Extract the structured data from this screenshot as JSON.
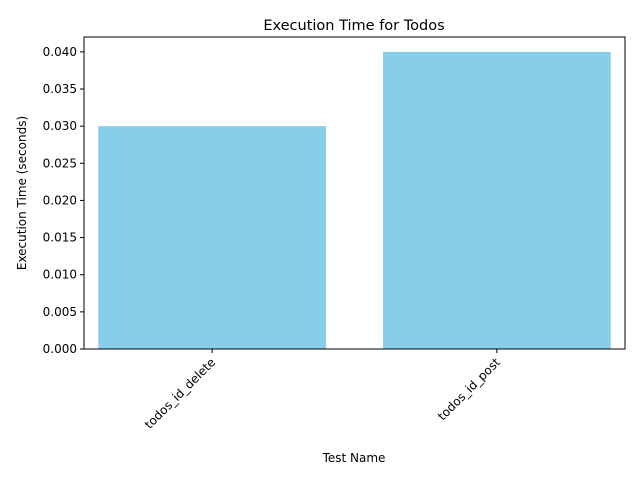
{
  "chart_data": {
    "type": "bar",
    "title": "Execution Time for Todos",
    "xlabel": "Test Name",
    "ylabel": "Execution Time (seconds)",
    "categories": [
      "todos_id_delete",
      "todos_id_post"
    ],
    "values": [
      0.03,
      0.04
    ],
    "ylim": [
      0,
      0.042
    ],
    "yticks": [
      "0.000",
      "0.005",
      "0.010",
      "0.015",
      "0.020",
      "0.025",
      "0.030",
      "0.035",
      "0.040"
    ],
    "ytick_values": [
      0,
      0.005,
      0.01,
      0.015,
      0.02,
      0.025,
      0.03,
      0.035,
      0.04
    ],
    "bar_color": "#87ceeb",
    "grid": false,
    "legend": "none"
  }
}
